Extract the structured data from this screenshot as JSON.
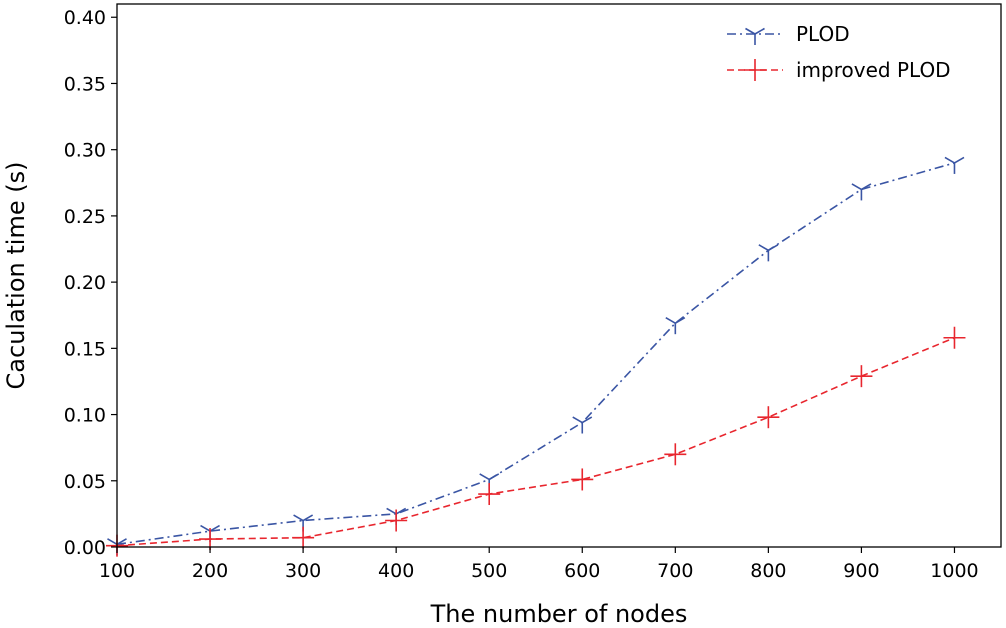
{
  "chart_data": {
    "type": "line",
    "title": "",
    "xlabel": "The number of nodes",
    "ylabel": "Caculation time (s)",
    "x": [
      100,
      200,
      300,
      400,
      500,
      600,
      700,
      800,
      900,
      1000
    ],
    "xlim": [
      100,
      1050
    ],
    "ylim": [
      0,
      0.41
    ],
    "x_ticks": [
      100,
      200,
      300,
      400,
      500,
      600,
      700,
      800,
      900,
      1000
    ],
    "x_tick_labels": [
      "100",
      "200",
      "300",
      "400",
      "500",
      "600",
      "700",
      "800",
      "900",
      "1000"
    ],
    "y_ticks": [
      0,
      0.05,
      0.1,
      0.15,
      0.2,
      0.25,
      0.3,
      0.35,
      0.4
    ],
    "y_tick_labels": [
      "0.00",
      "0.05",
      "0.10",
      "0.15",
      "0.20",
      "0.25",
      "0.30",
      "0.35",
      "0.40"
    ],
    "grid": false,
    "legend_position": "top-right",
    "series": [
      {
        "name": "PLOD",
        "color": "#3a55a4",
        "line_style": "dash-dot",
        "marker": "tri-down",
        "values": [
          0.002,
          0.012,
          0.02,
          0.025,
          0.051,
          0.094,
          0.169,
          0.224,
          0.27,
          0.29
        ]
      },
      {
        "name": "improved PLOD",
        "color": "#e8262e",
        "line_style": "dashed",
        "marker": "plus",
        "values": [
          0.001,
          0.006,
          0.007,
          0.02,
          0.04,
          0.051,
          0.07,
          0.098,
          0.129,
          0.158
        ]
      }
    ]
  }
}
